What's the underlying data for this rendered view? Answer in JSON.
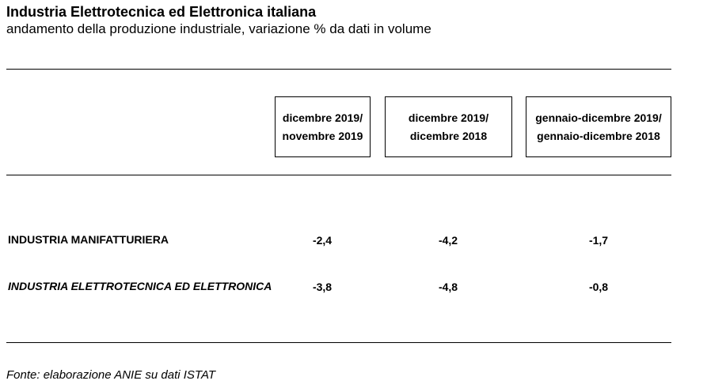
{
  "title": "Industria Elettrotecnica ed Elettronica italiana",
  "subtitle": "andamento della produzione industriale, variazione % da dati in volume",
  "chart_data": {
    "type": "table",
    "columns": [
      {
        "line1": "dicembre 2019/",
        "line2": "novembre 2019"
      },
      {
        "line1": "dicembre 2019/",
        "line2": "dicembre 2018"
      },
      {
        "line1": "gennaio-dicembre 2019/",
        "line2": "gennaio-dicembre 2018"
      }
    ],
    "rows": [
      {
        "label": "INDUSTRIA MANIFATTURIERA",
        "values": [
          "-2,4",
          "-4,2",
          "-1,7"
        ]
      },
      {
        "label": "INDUSTRIA ELETTROTECNICA ED ELETTRONICA",
        "values": [
          "-3,8",
          "-4,8",
          "-0,8"
        ]
      }
    ]
  },
  "source": "Fonte: elaborazione ANIE su dati ISTAT"
}
